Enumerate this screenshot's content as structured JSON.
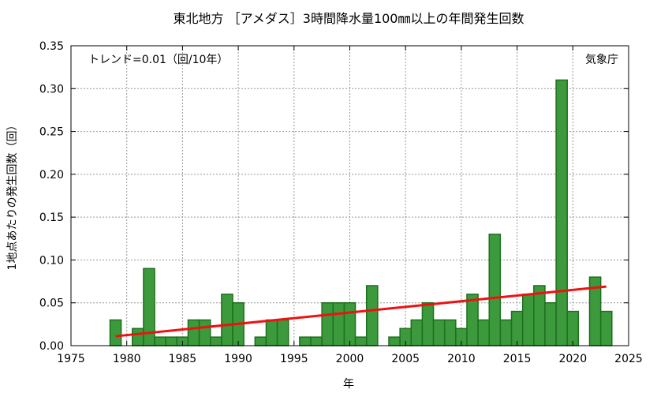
{
  "chart_data": {
    "type": "bar",
    "title": "東北地方 ［アメダス］3時間降水量100㎜以上の年間発生回数",
    "xlabel": "年",
    "ylabel": "1地点あたりの発生回数（回）",
    "trend_label": "トレンド=0.01（回/10年）",
    "source_label": "気象庁",
    "xlim": [
      1975,
      2025
    ],
    "ylim": [
      0,
      0.35
    ],
    "x_ticks": [
      1975,
      1980,
      1985,
      1990,
      1995,
      2000,
      2005,
      2010,
      2015,
      2020,
      2025
    ],
    "y_ticks": [
      "0.00",
      "0.05",
      "0.10",
      "0.15",
      "0.20",
      "0.25",
      "0.30",
      "0.35"
    ],
    "grid": true,
    "bar_color": "#3c9a3c",
    "bar_edge_color": "#1e701e",
    "trend_color": "#ee1111",
    "years": [
      1979,
      1980,
      1981,
      1982,
      1983,
      1984,
      1985,
      1986,
      1987,
      1988,
      1989,
      1990,
      1991,
      1992,
      1993,
      1994,
      1995,
      1996,
      1997,
      1998,
      1999,
      2000,
      2001,
      2002,
      2003,
      2004,
      2005,
      2006,
      2007,
      2008,
      2009,
      2010,
      2011,
      2012,
      2013,
      2014,
      2015,
      2016,
      2017,
      2018,
      2019,
      2020,
      2021,
      2022,
      2023
    ],
    "values": [
      0.03,
      0.0,
      0.02,
      0.09,
      0.01,
      0.01,
      0.01,
      0.03,
      0.03,
      0.01,
      0.06,
      0.05,
      0.0,
      0.01,
      0.03,
      0.03,
      0.0,
      0.01,
      0.01,
      0.05,
      0.05,
      0.05,
      0.01,
      0.07,
      0.0,
      0.01,
      0.02,
      0.03,
      0.05,
      0.03,
      0.03,
      0.02,
      0.06,
      0.03,
      0.13,
      0.03,
      0.04,
      0.06,
      0.07,
      0.05,
      0.31,
      0.04,
      0.0,
      0.08,
      0.04
    ],
    "trend": {
      "x": [
        1979,
        2023
      ],
      "y": [
        0.011,
        0.069
      ]
    }
  }
}
